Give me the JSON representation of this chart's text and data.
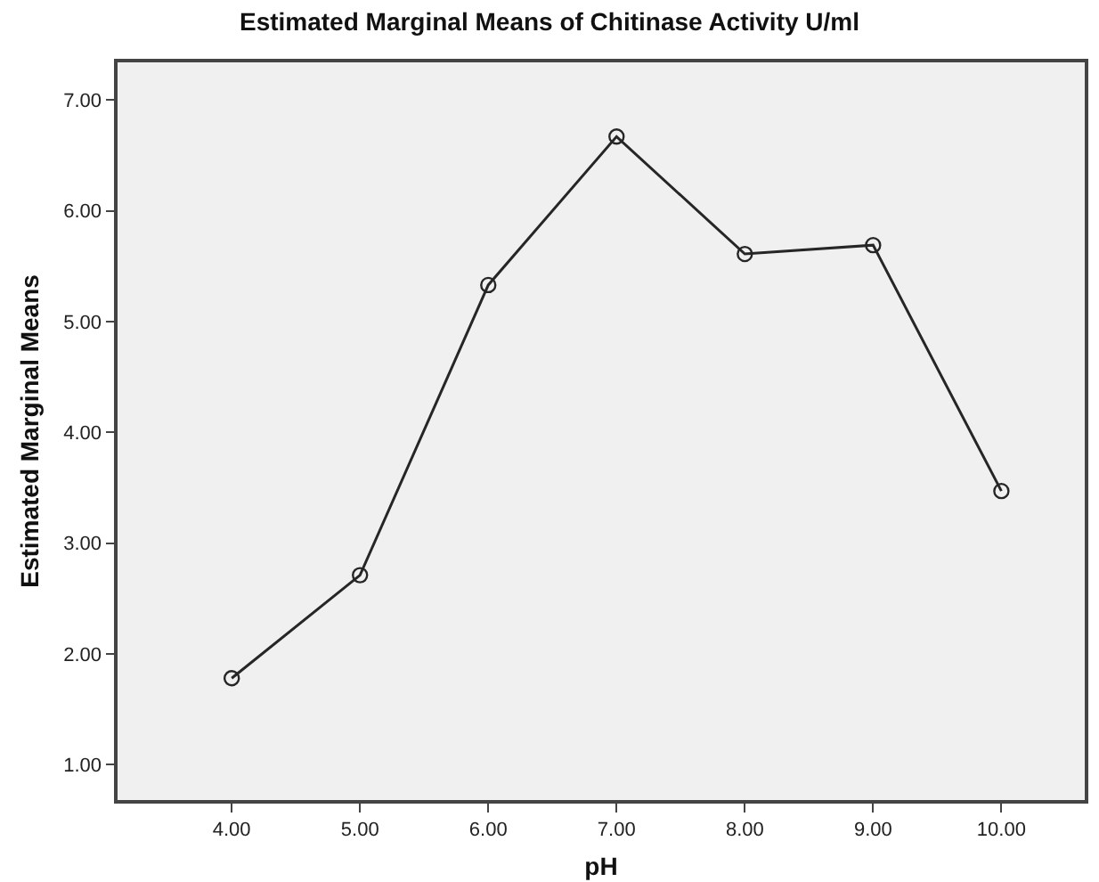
{
  "chart_data": {
    "type": "line",
    "title": "Estimated Marginal Means of Chitinase Activity U/ml",
    "xlabel": "pH",
    "ylabel": "Estimated Marginal Means",
    "x": [
      4,
      5,
      6,
      7,
      8,
      9,
      10
    ],
    "series": [
      {
        "color": "#262626",
        "values": [
          1.78,
          2.71,
          5.33,
          6.67,
          5.61,
          5.69,
          3.47
        ]
      }
    ],
    "xlim": [
      3.11,
      10.65
    ],
    "xticks": [
      {
        "value": 4,
        "label": "4.00"
      },
      {
        "value": 5,
        "label": "5.00"
      },
      {
        "value": 6,
        "label": "6.00"
      },
      {
        "value": 7,
        "label": "7.00"
      },
      {
        "value": 8,
        "label": "8.00"
      },
      {
        "value": 9,
        "label": "9.00"
      },
      {
        "value": 10,
        "label": "10.00"
      }
    ],
    "ylim": [
      0.68,
      7.34
    ],
    "yticks": [
      {
        "value": 1,
        "label": "1.00"
      },
      {
        "value": 2,
        "label": "2.00"
      },
      {
        "value": 3,
        "label": "3.00"
      },
      {
        "value": 4,
        "label": "4.00"
      },
      {
        "value": 5,
        "label": "5.00"
      },
      {
        "value": 6,
        "label": "6.00"
      },
      {
        "value": 7,
        "label": "7.00"
      }
    ],
    "grid": false,
    "marker": "circle",
    "line_style": "solid"
  }
}
